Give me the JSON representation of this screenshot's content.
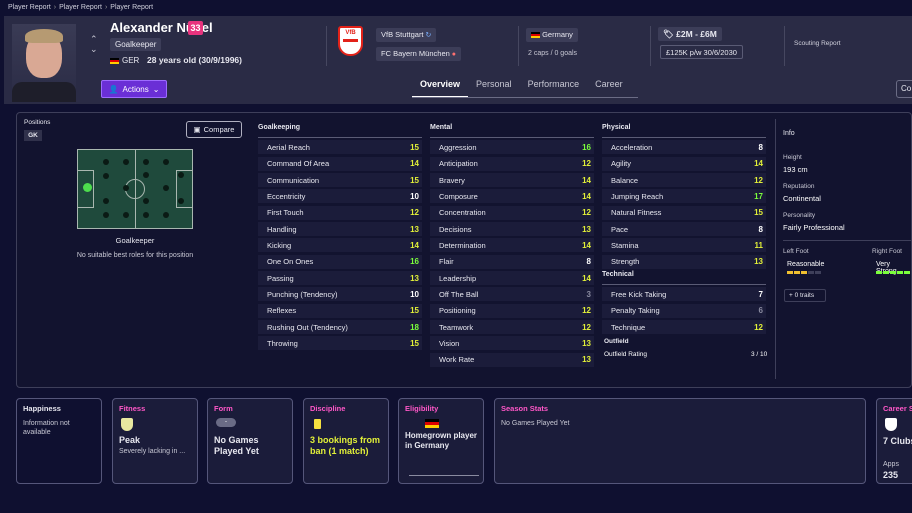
{
  "breadcrumb": [
    "Player Report",
    "Player Report",
    "Player Report"
  ],
  "player": {
    "name": "Alexander Nübel",
    "squad_number": "33",
    "role": "Goalkeeper",
    "nationality_code": "GER",
    "age_text": "28 years old (30/9/1996)"
  },
  "actions_label": "Actions",
  "club": {
    "crest_text": "VfB",
    "current": "VfB Stuttgart",
    "parent": "FC Bayern München"
  },
  "nation": {
    "name": "Germany",
    "caps": "2 caps / 0 goals"
  },
  "value": {
    "range": "£2M - £6M",
    "wage": "£125K p/w",
    "contract_end": "30/6/2030"
  },
  "scouting_label": "Scouting Report",
  "tabs": [
    "Overview",
    "Personal",
    "Performance",
    "Career"
  ],
  "compare_cut": "Co",
  "positions": {
    "title": "Positions",
    "badge": "GK",
    "compare_label": "Compare",
    "caption": "Goalkeeper",
    "note": "No suitable best roles for this position"
  },
  "goalkeeping": {
    "title": "Goalkeeping",
    "attrs": [
      {
        "name": "Aerial Reach",
        "value": "15",
        "tone": "y"
      },
      {
        "name": "Command Of Area",
        "value": "14",
        "tone": "y"
      },
      {
        "name": "Communication",
        "value": "15",
        "tone": "y"
      },
      {
        "name": "Eccentricity",
        "value": "10",
        "tone": "w"
      },
      {
        "name": "First Touch",
        "value": "12",
        "tone": "y"
      },
      {
        "name": "Handling",
        "value": "13",
        "tone": "y"
      },
      {
        "name": "Kicking",
        "value": "14",
        "tone": "y"
      },
      {
        "name": "One On Ones",
        "value": "16",
        "tone": "g"
      },
      {
        "name": "Passing",
        "value": "13",
        "tone": "y"
      },
      {
        "name": "Punching (Tendency)",
        "value": "10",
        "tone": "w"
      },
      {
        "name": "Reflexes",
        "value": "15",
        "tone": "y"
      },
      {
        "name": "Rushing Out (Tendency)",
        "value": "18",
        "tone": "g"
      },
      {
        "name": "Throwing",
        "value": "15",
        "tone": "y"
      }
    ]
  },
  "mental": {
    "title": "Mental",
    "attrs": [
      {
        "name": "Aggression",
        "value": "16",
        "tone": "g"
      },
      {
        "name": "Anticipation",
        "value": "12",
        "tone": "y"
      },
      {
        "name": "Bravery",
        "value": "14",
        "tone": "y"
      },
      {
        "name": "Composure",
        "value": "14",
        "tone": "y"
      },
      {
        "name": "Concentration",
        "value": "12",
        "tone": "y"
      },
      {
        "name": "Decisions",
        "value": "13",
        "tone": "y"
      },
      {
        "name": "Determination",
        "value": "14",
        "tone": "y"
      },
      {
        "name": "Flair",
        "value": "8",
        "tone": "w"
      },
      {
        "name": "Leadership",
        "value": "14",
        "tone": "y"
      },
      {
        "name": "Off The Ball",
        "value": "3",
        "tone": "d"
      },
      {
        "name": "Positioning",
        "value": "12",
        "tone": "y"
      },
      {
        "name": "Teamwork",
        "value": "12",
        "tone": "y"
      },
      {
        "name": "Vision",
        "value": "13",
        "tone": "y"
      },
      {
        "name": "Work Rate",
        "value": "13",
        "tone": "y"
      }
    ]
  },
  "physical": {
    "title": "Physical",
    "attrs": [
      {
        "name": "Acceleration",
        "value": "8",
        "tone": "w"
      },
      {
        "name": "Agility",
        "value": "14",
        "tone": "y"
      },
      {
        "name": "Balance",
        "value": "12",
        "tone": "y"
      },
      {
        "name": "Jumping Reach",
        "value": "17",
        "tone": "g"
      },
      {
        "name": "Natural Fitness",
        "value": "15",
        "tone": "y"
      },
      {
        "name": "Pace",
        "value": "8",
        "tone": "w"
      },
      {
        "name": "Stamina",
        "value": "11",
        "tone": "y"
      },
      {
        "name": "Strength",
        "value": "13",
        "tone": "y"
      }
    ]
  },
  "technical": {
    "title": "Technical",
    "attrs": [
      {
        "name": "Free Kick Taking",
        "value": "7",
        "tone": "w"
      },
      {
        "name": "Penalty Taking",
        "value": "6",
        "tone": "d"
      },
      {
        "name": "Technique",
        "value": "12",
        "tone": "y"
      }
    ]
  },
  "outfield": {
    "title": "Outfield",
    "label": "Outfield Rating",
    "value": "3 / 10"
  },
  "info": {
    "title": "Info",
    "height_label": "Height",
    "height": "193 cm",
    "reputation_label": "Reputation",
    "reputation": "Continental",
    "personality_label": "Personality",
    "personality": "Fairly Professional",
    "left_foot_label": "Left Foot",
    "left_foot": "Reasonable",
    "right_foot_label": "Right Foot",
    "right_foot": "Very Strong",
    "traits": "0 traits"
  },
  "cards": {
    "happiness": {
      "title": "Happiness",
      "text": "Information not available"
    },
    "fitness": {
      "title": "Fitness",
      "value": "Peak",
      "sub": "Severely lacking in ..."
    },
    "form": {
      "title": "Form",
      "bubble": "-",
      "value": "No Games Played Yet"
    },
    "discipline": {
      "title": "Discipline",
      "value": "3 bookings from ban (1 match)"
    },
    "eligibility": {
      "title": "Eligibility",
      "value": "Homegrown player in Germany"
    },
    "season": {
      "title": "Season Stats",
      "text": "No Games Played Yet"
    },
    "career": {
      "title": "Career St",
      "clubs": "7 Clubs",
      "apps_label": "Apps",
      "apps": "235"
    }
  },
  "colors": {
    "accent": "#6a2fd6",
    "captain": "#e8337e",
    "yellow": "#e2f038",
    "green": "#7bff3c",
    "title_pink": "#ff57c8"
  }
}
